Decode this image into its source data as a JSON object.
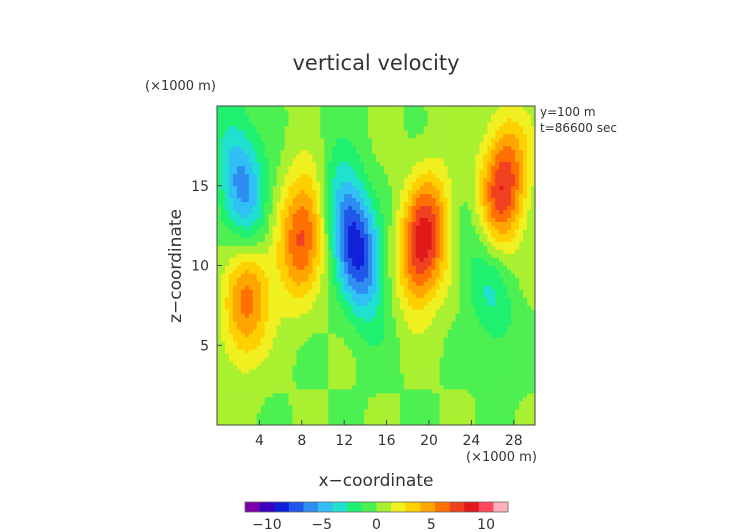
{
  "chart_data": {
    "type": "heatmap",
    "title": "vertical velocity",
    "xlabel": "x−coordinate",
    "ylabel": "z−coordinate",
    "x_unit": "(×1000 m)",
    "z_unit": "(×1000 m)",
    "annotations": [
      "y=100 m",
      "t=86600 sec"
    ],
    "xlim": [
      0,
      30
    ],
    "ylim": [
      0,
      20
    ],
    "x_ticks": [
      4,
      8,
      12,
      16,
      20,
      24,
      28
    ],
    "x_tick_labels": [
      "4",
      "8",
      "12",
      "16",
      "20",
      "24",
      "28"
    ],
    "y_ticks": [
      5,
      10,
      15
    ],
    "y_tick_labels": [
      "5",
      "10",
      "15"
    ],
    "colorbar": {
      "range": [
        -12,
        12
      ],
      "ticks": [
        -10,
        -5,
        0,
        5,
        10
      ],
      "tick_labels": [
        "−10",
        "−5",
        "0",
        "5",
        "10"
      ],
      "colors": [
        "#7a00a8",
        "#3d00c0",
        "#1020d8",
        "#1f55e8",
        "#2f8cf0",
        "#30c0f5",
        "#20e0d0",
        "#20f070",
        "#4cf050",
        "#a8f030",
        "#f0f020",
        "#ffd000",
        "#ffa500",
        "#ff7000",
        "#f04020",
        "#e01818",
        "#ff4860",
        "#ffb0b8"
      ]
    },
    "field_features": [
      {
        "kind": "updraft",
        "x": 8.0,
        "z": 12.0,
        "peak": 7
      },
      {
        "kind": "updraft",
        "x": 19.5,
        "z": 11.5,
        "peak": 9
      },
      {
        "kind": "updraft",
        "x": 27.0,
        "z": 15.0,
        "peak": 8
      },
      {
        "kind": "updraft",
        "x": 3.0,
        "z": 8.0,
        "peak": 6
      },
      {
        "kind": "downdraft",
        "x": 13.0,
        "z": 11.5,
        "peak": -9
      },
      {
        "kind": "downdraft",
        "x": 2.5,
        "z": 15.0,
        "peak": -6
      },
      {
        "kind": "downdraft",
        "x": 25.5,
        "z": 9.0,
        "peak": -3
      }
    ]
  }
}
